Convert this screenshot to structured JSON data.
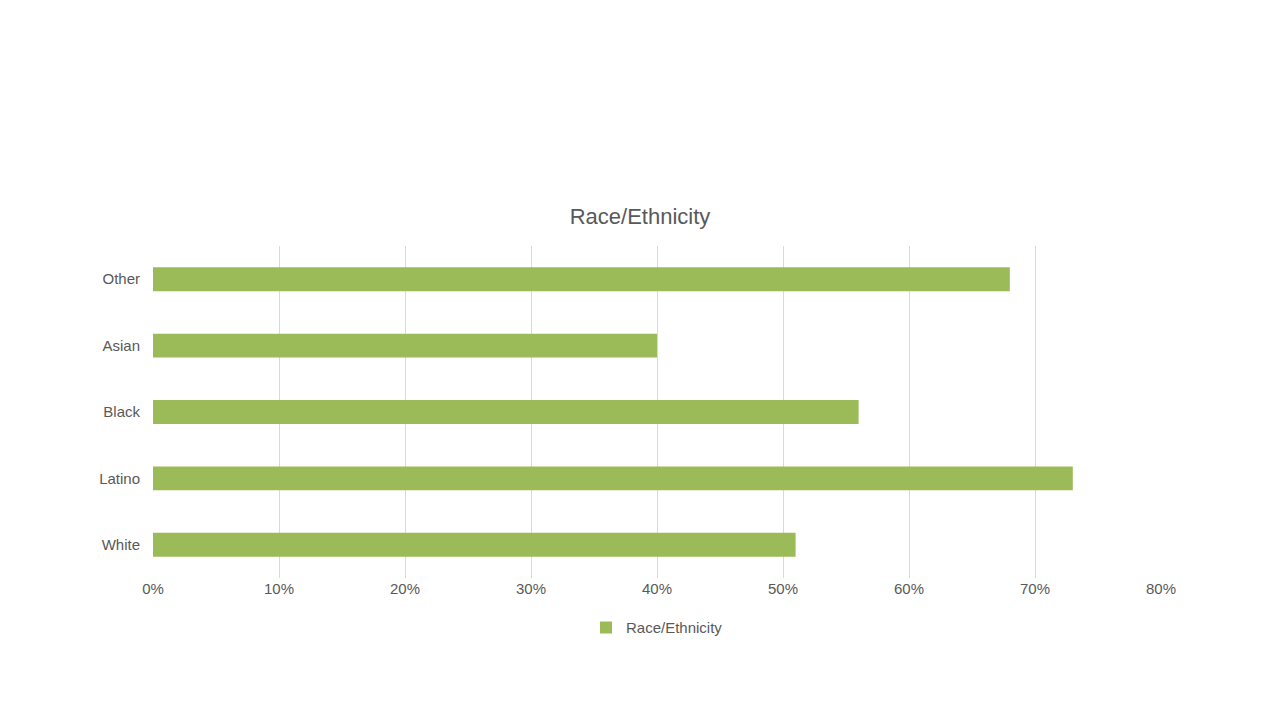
{
  "chart_data": {
    "type": "bar",
    "title": "Race/Ethnicity",
    "orientation": "horizontal",
    "categories": [
      "White",
      "Latino",
      "Black",
      "Asian",
      "Other"
    ],
    "series": [
      {
        "name": "Race/Ethnicity",
        "color": "#9bbb59",
        "values": [
          51,
          73,
          56,
          40,
          68
        ]
      }
    ],
    "xlim": [
      0,
      80
    ],
    "xticks": [
      {
        "value": 0,
        "label": "0%"
      },
      {
        "value": 10,
        "label": "10%"
      },
      {
        "value": 20,
        "label": "20%"
      },
      {
        "value": 30,
        "label": "30%"
      },
      {
        "value": 40,
        "label": "40%"
      },
      {
        "value": 50,
        "label": "50%"
      },
      {
        "value": 60,
        "label": "60%"
      },
      {
        "value": 70,
        "label": "70%"
      },
      {
        "value": 80,
        "label": "80%"
      }
    ],
    "grid": true,
    "legend": "bottom"
  }
}
